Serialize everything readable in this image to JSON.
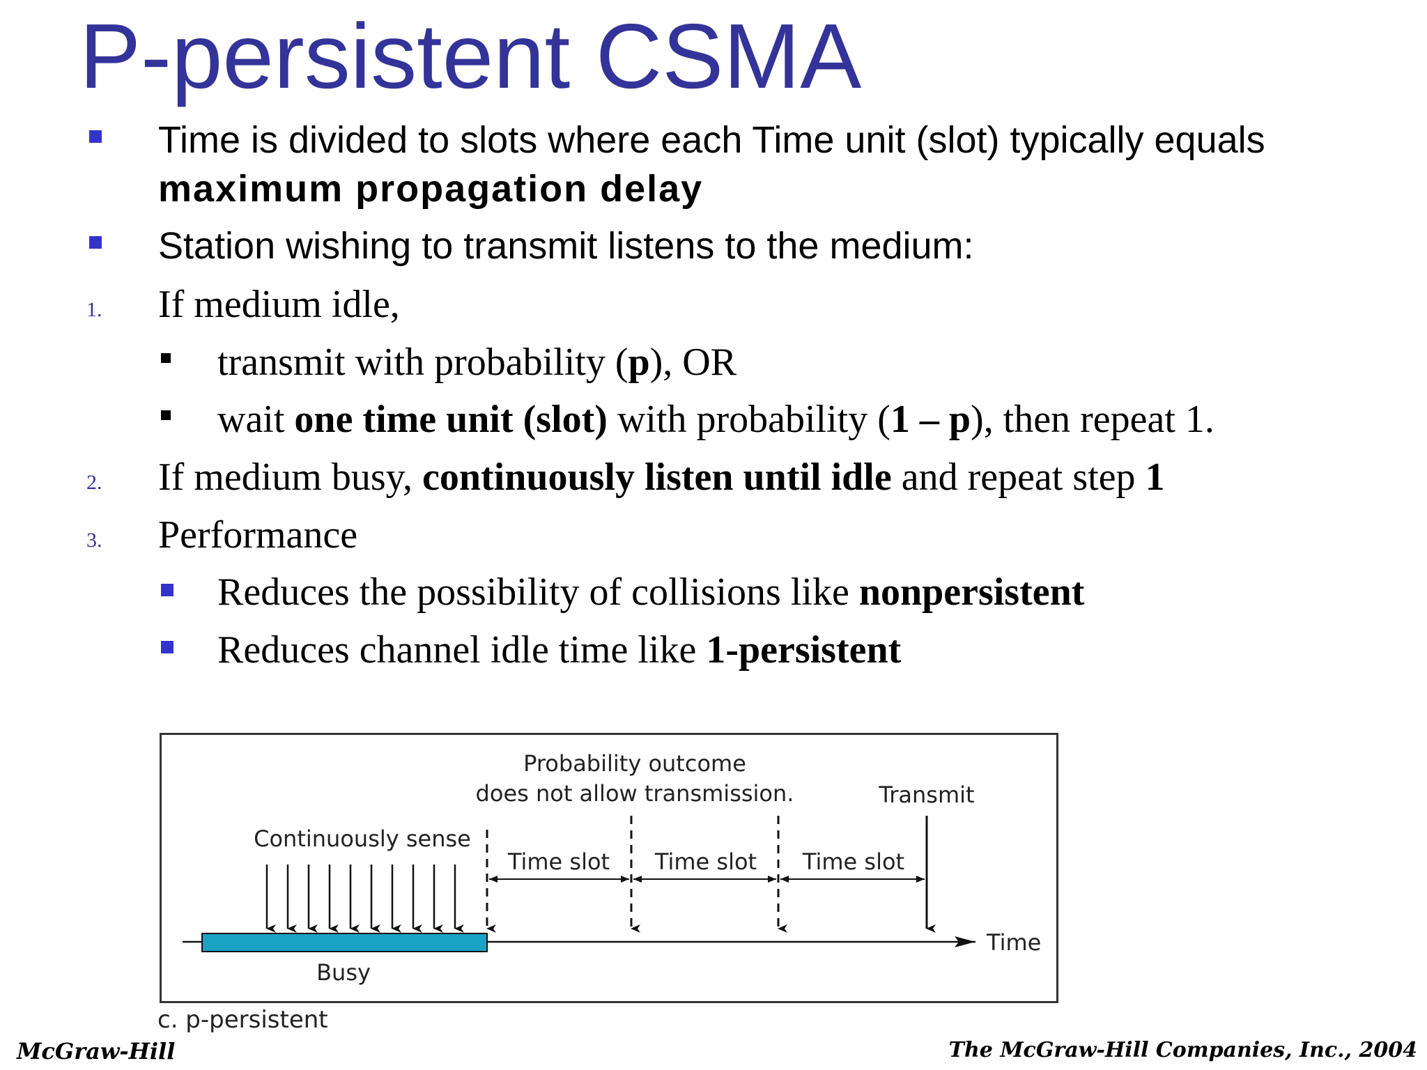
{
  "title": "P-persistent CSMA",
  "bullets": {
    "b1": {
      "line1": "Time is divided to slots where each Time unit (slot) typically equals",
      "line2": "maximum propagation delay"
    },
    "b2": "Station wishing to transmit listens to the medium:",
    "n1": {
      "num": "1.",
      "text": "If medium idle,",
      "sub1": {
        "pre": "transmit with probability (",
        "bold": "p",
        "post": "), OR"
      },
      "sub2": {
        "pre": "wait ",
        "bold1": "one time unit (slot)",
        "mid": " with probability (",
        "bold2": "1 – p",
        "post": "), then repeat 1."
      }
    },
    "n2": {
      "num": "2.",
      "pre": "If medium busy, ",
      "bold1": "continuously listen until idle",
      "mid": " and repeat step ",
      "bold2": "1"
    },
    "n3": {
      "num": "3.",
      "text": "Performance",
      "sub1": {
        "pre": "Reduces the possibility of collisions like ",
        "bold": "nonpersistent"
      },
      "sub2": {
        "pre": "Reduces channel idle time like ",
        "bold": "1-persistent"
      }
    }
  },
  "diagram": {
    "prob_line1": "Probability outcome",
    "prob_line2": "does not allow transmission.",
    "transmit": "Transmit",
    "continuously_sense": "Continuously sense",
    "time_slot_1": "Time slot",
    "time_slot_2": "Time slot",
    "time_slot_3": "Time slot",
    "time": "Time",
    "busy": "Busy",
    "busy_color": "#1aa3c4",
    "busy_label_color": "#e0206f"
  },
  "caption": "c. p-persistent",
  "footer": {
    "left": "McGraw-Hill",
    "right": "The McGraw-Hill Companies, Inc., 2004"
  },
  "colors": {
    "title": "#333399",
    "bullet": "#3333cc"
  }
}
